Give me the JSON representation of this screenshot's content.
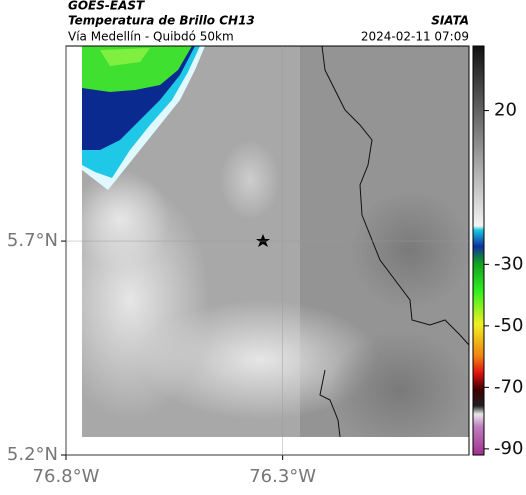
{
  "header": {
    "title": "GOES-EAST",
    "subtitle": "Temperatura de Brillo CH13",
    "route": "Vía Medellín - Quibdó 50km",
    "source": "SIATA",
    "timestamp": "2024-02-11 07:09"
  },
  "map": {
    "xlim": [
      -76.8,
      -75.87
    ],
    "ylim": [
      5.2,
      6.156
    ],
    "xticks": [
      {
        "value": -76.8,
        "label": "76.8°W"
      },
      {
        "value": -76.3,
        "label": "76.3°W"
      }
    ],
    "yticks": [
      {
        "value": 5.7,
        "label": "5.7°N"
      },
      {
        "value": 5.2,
        "label": "5.2°N"
      }
    ],
    "grid": true
  },
  "colorbar": {
    "lim": [
      41,
      -92
    ],
    "ticks": [
      20,
      -30,
      -50,
      -70,
      -90
    ]
  }
}
